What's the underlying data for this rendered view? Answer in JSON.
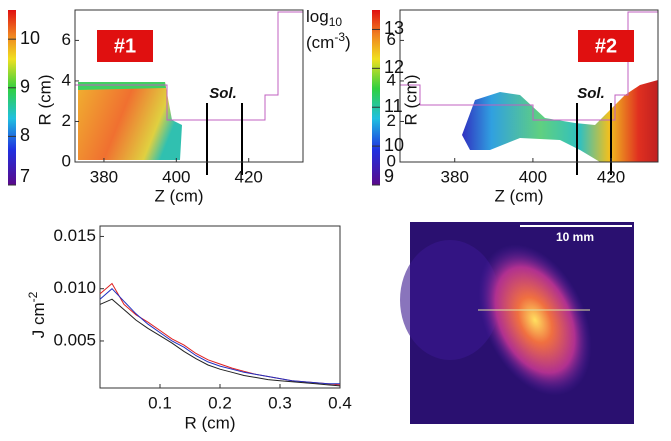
{
  "chart_data": [
    {
      "type": "heatmap",
      "label": "#1",
      "annotation": "Sol.",
      "xlabel": "Z (cm)",
      "ylabel": "R (cm)",
      "xlim": [
        372,
        435
      ],
      "ylim": [
        0,
        7.5
      ],
      "xticks": [
        380,
        400,
        420
      ],
      "yticks": [
        0,
        2,
        4,
        6
      ],
      "clim": [
        7,
        10.6
      ],
      "cticks": [
        7,
        8,
        9,
        10
      ],
      "colorbar_label": [
        "log",
        "10",
        "(cm",
        "-3",
        ")"
      ]
    },
    {
      "type": "heatmap",
      "label": "#2",
      "annotation": "Sol.",
      "xlabel": "Z (cm)",
      "ylabel": "R (cm)",
      "xlim": [
        366,
        432
      ],
      "ylim": [
        0,
        7.5
      ],
      "xticks": [
        380,
        400,
        420
      ],
      "yticks": [
        0,
        2,
        4,
        6
      ],
      "clim": [
        9,
        13.5
      ],
      "cticks": [
        9,
        10,
        11,
        12,
        13
      ]
    },
    {
      "type": "line",
      "xlabel": "R (cm)",
      "ylabel": [
        "J cm",
        "-2"
      ],
      "x": [
        0.0,
        0.02,
        0.04,
        0.06,
        0.08,
        0.1,
        0.12,
        0.14,
        0.16,
        0.18,
        0.2,
        0.22,
        0.24,
        0.26,
        0.28,
        0.3,
        0.32,
        0.34,
        0.36,
        0.38,
        0.4
      ],
      "xlim": [
        0,
        0.4
      ],
      "ylim": [
        0.0005,
        0.016
      ],
      "xticks": [
        0.1,
        0.2,
        0.3,
        0.4
      ],
      "yticks": [
        0.005,
        {
          "value": 0.01,
          "label": "0.010"
        },
        0.015
      ],
      "series": [
        {
          "color": "#e02020",
          "values": [
            0.0095,
            0.0105,
            0.0085,
            0.0075,
            0.0068,
            0.006,
            0.0052,
            0.0046,
            0.0038,
            0.0032,
            0.0028,
            0.0024,
            0.0021,
            0.0018,
            0.0016,
            0.0014,
            0.0012,
            0.0011,
            0.001,
            0.0009,
            0.0008
          ]
        },
        {
          "color": "#2030c0",
          "values": [
            0.009,
            0.01,
            0.0088,
            0.0076,
            0.0066,
            0.0058,
            0.005,
            0.0044,
            0.0036,
            0.003,
            0.0026,
            0.0023,
            0.002,
            0.0018,
            0.0016,
            0.0014,
            0.0012,
            0.0011,
            0.001,
            0.0009,
            0.0009
          ]
        },
        {
          "color": "#222222",
          "values": [
            0.0085,
            0.009,
            0.008,
            0.007,
            0.0062,
            0.0055,
            0.0048,
            0.004,
            0.0033,
            0.0027,
            0.0023,
            0.002,
            0.0017,
            0.0015,
            0.0013,
            0.0012,
            0.0011,
            0.001,
            0.0009,
            0.0008,
            0.0007
          ]
        }
      ]
    },
    {
      "type": "image",
      "scale_label": "10 mm"
    }
  ]
}
